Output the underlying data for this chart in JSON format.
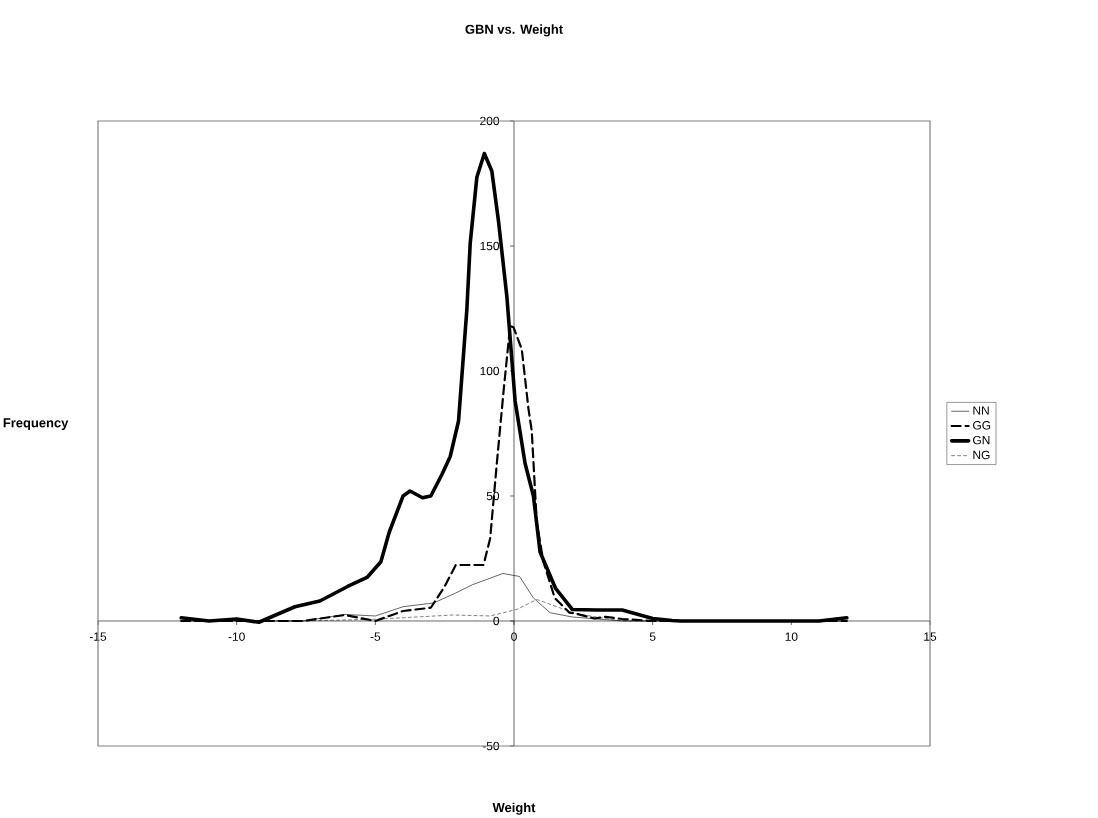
{
  "chart_data": {
    "type": "line",
    "title": "GBN vs. Weight",
    "xlabel": "Weight",
    "ylabel": "Frequency",
    "xlim": [
      -15,
      15
    ],
    "ylim": [
      -50,
      200
    ],
    "xticks": [
      -15,
      -10,
      -5,
      0,
      5,
      10,
      15
    ],
    "yticks": [
      -50,
      0,
      50,
      100,
      150,
      200
    ],
    "grid": false,
    "legend": "right",
    "marker": "none",
    "series": [
      {
        "name": "NN",
        "color": "#000000",
        "line_style": "solid",
        "x": [
          -12,
          -7.6,
          -6.1,
          -5,
          -4,
          -2.9,
          -2.1,
          -1.5,
          -0.4,
          0.2,
          0.7,
          1.3,
          2.1,
          3,
          3.9,
          12
        ],
        "values": [
          0,
          0,
          2.6,
          2,
          5.7,
          7.2,
          11.2,
          14.5,
          19,
          17.8,
          9.2,
          3.3,
          1.6,
          0.8,
          0,
          0
        ]
      },
      {
        "name": "GG",
        "color": "#000000",
        "line_style": "dashed",
        "x": [
          -12,
          -7.6,
          -6.1,
          -5,
          -4,
          -3,
          -2.5,
          -2.1,
          -1.1,
          -0.86,
          -0.62,
          -0.38,
          -0.14,
          -0.02,
          0.28,
          0.52,
          0.64,
          0.82,
          1.06,
          1.47,
          2,
          2.2,
          2.9,
          3.3,
          3.9,
          5,
          12
        ],
        "values": [
          0,
          0,
          2.4,
          0,
          4,
          5.3,
          13.8,
          22.4,
          22.4,
          33,
          63,
          91.5,
          118,
          117.5,
          108.7,
          85,
          76,
          39.5,
          23.7,
          9.2,
          3.3,
          3,
          1,
          1.7,
          0.8,
          0,
          0
        ]
      },
      {
        "name": "GN",
        "color": "#000000",
        "line_style": "solid",
        "x": [
          -12,
          -11,
          -10,
          -9.2,
          -7.9,
          -7,
          -6,
          -5.3,
          -4.8,
          -4.5,
          -4,
          -3.75,
          -3.3,
          -3,
          -2.6,
          -2.3,
          -2,
          -1.7,
          -1.58,
          -1.34,
          -1.07,
          -0.8,
          -0.56,
          -0.26,
          0.04,
          0.4,
          0.7,
          0.94,
          1.5,
          2.1,
          3,
          3.9,
          5,
          5.7,
          6,
          11,
          12
        ],
        "values": [
          1.3,
          0,
          0.8,
          -0.5,
          5.7,
          8,
          13.8,
          17.4,
          23.7,
          35.5,
          50,
          52,
          49.3,
          50,
          58.6,
          65.8,
          80,
          124.6,
          151,
          177.5,
          187,
          180,
          160,
          130,
          88,
          63,
          50,
          27.6,
          13,
          4.6,
          4.4,
          4.4,
          1,
          0.2,
          0,
          0,
          1.3
        ]
      },
      {
        "name": "NG",
        "color": "#000000",
        "line_style": "dashed",
        "x": [
          -12,
          -7.6,
          -5,
          -2.2,
          -0.86,
          0.1,
          0.82,
          1.65,
          2.25,
          3,
          4,
          12
        ],
        "values": [
          0,
          0,
          0.7,
          2.4,
          2,
          4.6,
          8.6,
          5.3,
          2.9,
          1.5,
          0,
          0
        ]
      }
    ]
  }
}
